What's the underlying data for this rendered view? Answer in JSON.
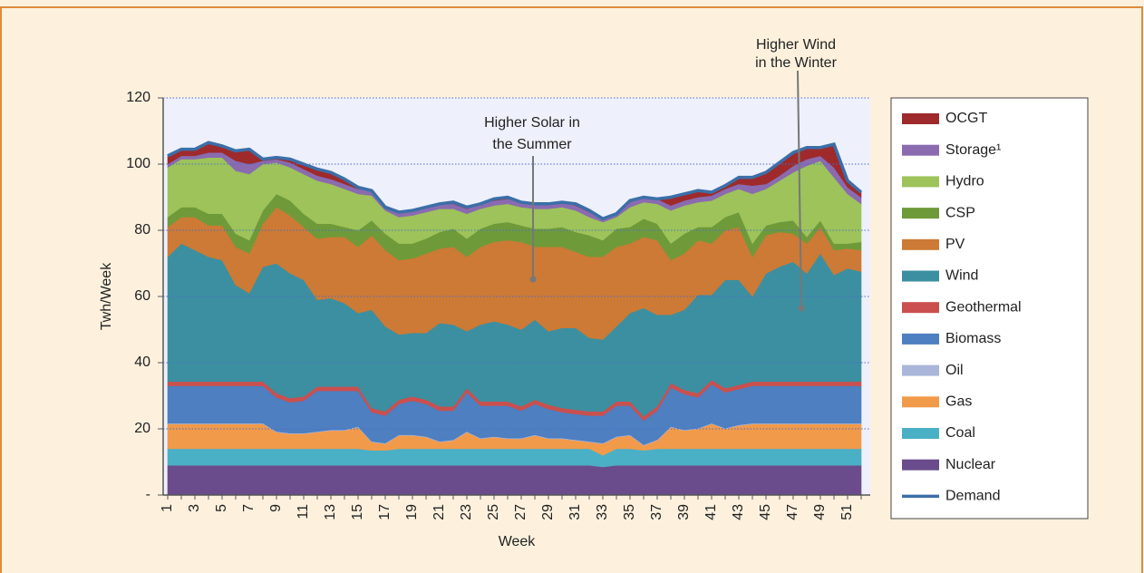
{
  "chart_data": {
    "type": "stacked_area",
    "xlabel": "Week",
    "ylabel": "Twh/Week",
    "annotations": [
      [
        "Higher Solar in",
        "the Summer"
      ],
      [
        "Higher Wind",
        "in the Winter"
      ]
    ],
    "categories": [
      1,
      null,
      3,
      null,
      5,
      null,
      7,
      null,
      9,
      null,
      11,
      null,
      13,
      null,
      15,
      null,
      17,
      null,
      19,
      null,
      21,
      null,
      23,
      null,
      25,
      null,
      27,
      null,
      29,
      null,
      31,
      null,
      33,
      null,
      35,
      null,
      37,
      null,
      39,
      null,
      41,
      null,
      43,
      null,
      45,
      null,
      47,
      null,
      49,
      null,
      51,
      null
    ],
    "ylim": [
      0,
      120
    ],
    "yticks": [
      {
        "value": 0,
        "label": "-"
      },
      20,
      40,
      60,
      80,
      100,
      120
    ],
    "grid": true,
    "series": [
      {
        "name": "Nuclear",
        "color": "#6a4c8c",
        "values": [
          9,
          9,
          9,
          9,
          9,
          9,
          9,
          9,
          9,
          9,
          9,
          9,
          9,
          9,
          9,
          9,
          9,
          9,
          9,
          9,
          9,
          9,
          9,
          9,
          9,
          9,
          9,
          9,
          9,
          9,
          9,
          9,
          8.5,
          9,
          9,
          9,
          9,
          9,
          9,
          9,
          9,
          9,
          9,
          9,
          9,
          9,
          9,
          9,
          9,
          9,
          9,
          9
        ]
      },
      {
        "name": "Coal",
        "color": "#4ab0c6",
        "values": [
          5,
          5,
          5,
          5,
          5,
          5,
          5,
          5,
          5,
          5,
          5,
          5,
          5,
          5,
          5,
          4.5,
          4.5,
          5,
          5,
          5,
          5,
          5,
          5,
          5,
          5,
          5,
          5,
          5,
          5,
          5,
          5,
          5,
          3.5,
          5,
          5,
          4.5,
          5,
          5,
          5,
          5,
          5,
          5,
          5,
          5,
          5,
          5,
          5,
          5,
          5,
          5,
          5,
          5
        ]
      },
      {
        "name": "Gas",
        "color": "#f19a4a",
        "values": [
          7.5,
          7.5,
          7.5,
          7.5,
          7.5,
          7.5,
          7.5,
          7.5,
          5,
          4.5,
          4.5,
          5,
          5.5,
          5.5,
          6.5,
          2.5,
          2,
          4,
          4,
          3.5,
          2,
          2.5,
          5,
          3,
          3.5,
          3,
          3,
          4,
          3,
          3,
          2.5,
          2,
          3.5,
          3.5,
          4,
          1.5,
          2.5,
          6.5,
          5.5,
          6,
          7.5,
          6,
          7,
          7.5,
          7.5,
          7.5,
          7.5,
          7.5,
          7.5,
          7.5,
          7.5,
          7.5
        ]
      },
      {
        "name": "Oil",
        "color": "#a9b6d9",
        "values": [
          0.2,
          0.2,
          0.2,
          0.2,
          0.2,
          0.2,
          0.2,
          0.2,
          0.2,
          0.2,
          0.2,
          0.2,
          0.2,
          0.2,
          0.2,
          0.2,
          0.2,
          0.2,
          0.2,
          0.2,
          0.2,
          0.2,
          0.2,
          0.2,
          0.2,
          0.2,
          0.2,
          0.2,
          0.2,
          0.2,
          0.2,
          0.2,
          0.2,
          0.2,
          0.2,
          0.2,
          0.2,
          0.2,
          0.2,
          0.2,
          0.2,
          0.2,
          0.2,
          0.2,
          0.2,
          0.2,
          0.2,
          0.2,
          0.2,
          0.2,
          0.2,
          0.2
        ]
      },
      {
        "name": "Biomass",
        "color": "#4d7fc1",
        "values": [
          11.3,
          11.3,
          11.3,
          11.3,
          11.3,
          11.3,
          11.3,
          11.3,
          10.3,
          9.3,
          9.8,
          12.3,
          11.8,
          11.8,
          10.8,
          8.8,
          8.3,
          9.3,
          10.3,
          9.8,
          9.3,
          8.8,
          11.8,
          9.8,
          9.3,
          9.8,
          8.3,
          9.3,
          8.8,
          7.8,
          7.8,
          7.8,
          8.3,
          9.3,
          8.8,
          7.3,
          8.8,
          11.8,
          10.8,
          9.3,
          11.8,
          10.8,
          10.8,
          11.3,
          11.3,
          11.3,
          11.3,
          11.3,
          11.3,
          11.3,
          11.3,
          11.3
        ]
      },
      {
        "name": "Geothermal",
        "color": "#c9504f",
        "values": [
          1.3,
          1.3,
          1.3,
          1.3,
          1.3,
          1.3,
          1.3,
          1.3,
          1.3,
          1.3,
          1.3,
          1.3,
          1.3,
          1.3,
          1.3,
          1.3,
          1.3,
          1.3,
          1.3,
          1.3,
          1.3,
          1.3,
          1.3,
          1.3,
          1.3,
          1.3,
          1.3,
          1.3,
          1.3,
          1.3,
          1.3,
          1.3,
          1.3,
          1.3,
          1.3,
          1.3,
          1.3,
          1.3,
          1.3,
          1.3,
          1.3,
          1.3,
          1.3,
          1.3,
          1.3,
          1.3,
          1.3,
          1.3,
          1.3,
          1.3,
          1.3,
          1.3
        ]
      },
      {
        "name": "Wind",
        "color": "#3c8fa0",
        "values": [
          37.7,
          41.7,
          39.7,
          37.7,
          36.7,
          29.2,
          26.7,
          34.7,
          39.2,
          37.7,
          35.2,
          26.2,
          26.7,
          25.2,
          22.2,
          29.7,
          25.7,
          19.7,
          19.2,
          20.2,
          25.2,
          24.7,
          17.2,
          23.2,
          24.2,
          23.2,
          23.2,
          24.2,
          22.2,
          24.2,
          24.7,
          22.2,
          21.7,
          22.7,
          26.7,
          32.7,
          27.7,
          20.7,
          24.2,
          29.7,
          25.7,
          32.7,
          31.7,
          25.7,
          32.7,
          34.7,
          36.2,
          32.7,
          38.7,
          32.2,
          34.2,
          33.2
        ]
      },
      {
        "name": "PV",
        "color": "#cc7a35",
        "values": [
          9,
          8,
          10,
          9.5,
          10.5,
          11.5,
          12,
          13,
          17,
          17.5,
          16,
          18.5,
          18.5,
          20,
          20,
          22.5,
          23,
          22.5,
          22.5,
          24,
          22.5,
          23.5,
          22.5,
          23.5,
          24,
          25.5,
          26.5,
          22,
          25.5,
          24.5,
          23,
          24.5,
          25,
          24,
          21,
          21.5,
          22.5,
          16.5,
          17,
          16.5,
          15.5,
          15,
          16,
          12,
          11.5,
          10.5,
          8.5,
          9,
          8,
          7.5,
          6,
          6.5
        ]
      },
      {
        "name": "CSP",
        "color": "#6f9a3a",
        "values": [
          3,
          3,
          3,
          3.5,
          3.5,
          4,
          4,
          4,
          4,
          4.5,
          4,
          4.5,
          4,
          3,
          5,
          4.5,
          5,
          5,
          4.5,
          4.5,
          5,
          5.5,
          5.5,
          5.5,
          5.5,
          5.5,
          5,
          5.5,
          5.5,
          6,
          6,
          6.5,
          5,
          5.5,
          5,
          5.5,
          5,
          5,
          6,
          4,
          5,
          4,
          4.5,
          4,
          3,
          3,
          4,
          2,
          2,
          2,
          1.5,
          2.5
        ]
      },
      {
        "name": "Hydro",
        "color": "#9dc35a",
        "values": [
          15,
          14.5,
          14.5,
          17,
          17,
          19,
          20,
          14,
          9.5,
          10,
          12,
          13,
          12,
          11.5,
          11,
          7.5,
          7,
          8,
          8.5,
          8,
          7,
          6,
          7.5,
          6,
          5.5,
          5.5,
          5.5,
          6,
          6,
          6,
          6.5,
          5.5,
          5.5,
          3.5,
          6,
          5,
          6,
          10,
          8.5,
          7.5,
          8,
          7,
          7,
          15,
          11,
          12.5,
          14.5,
          21.5,
          18,
          20,
          15,
          11.5
        ]
      },
      {
        "name": "Storage¹",
        "color": "#8a6bb0",
        "values": [
          1,
          1,
          1,
          1.5,
          1.5,
          3,
          3,
          1,
          1,
          1.5,
          1.5,
          1.5,
          1.5,
          1.5,
          1.5,
          1.5,
          1,
          1.5,
          1.5,
          1.5,
          1.5,
          1.5,
          1.5,
          1.5,
          1.5,
          1.5,
          1.5,
          1.5,
          1.5,
          1.5,
          1.5,
          1.5,
          1,
          1,
          1.5,
          1.5,
          1.5,
          1.5,
          1.5,
          1.5,
          1.5,
          1.5,
          1.5,
          2.5,
          1.5,
          1.5,
          2,
          2,
          1.5,
          3,
          2,
          2
        ]
      },
      {
        "name": "OCGT",
        "color": "#9e2a2b",
        "values": [
          2.5,
          2,
          2,
          3,
          2,
          3,
          4.5,
          0.5,
          0.5,
          1,
          1.5,
          2,
          2,
          1.5,
          0.5,
          0,
          0,
          0,
          0,
          0,
          0,
          0.5,
          0.5,
          0,
          0.5,
          0.5,
          0,
          0,
          0,
          0,
          0.5,
          0.5,
          0,
          0,
          0.5,
          0,
          0,
          2.5,
          2,
          2,
          1,
          1,
          2,
          2.5,
          3.5,
          4,
          4,
          3.5,
          2.5,
          7,
          2,
          1.5
        ]
      }
    ],
    "line": {
      "name": "Demand",
      "color": "#3b6fa8",
      "values": [
        102.5,
        104.5,
        104.5,
        106.5,
        105.5,
        104,
        104.5,
        101.5,
        102,
        101.5,
        100,
        98.5,
        97.5,
        95.5,
        93,
        92,
        87,
        85.5,
        86,
        87,
        88,
        88.5,
        87,
        88,
        89.5,
        90,
        88.5,
        88,
        88,
        88.5,
        88,
        86,
        83.5,
        85,
        89,
        90,
        89.5,
        90,
        91,
        92,
        91.5,
        93.5,
        96,
        96,
        97.5,
        100.5,
        103.5,
        105,
        105,
        106,
        95,
        91.5
      ]
    }
  }
}
